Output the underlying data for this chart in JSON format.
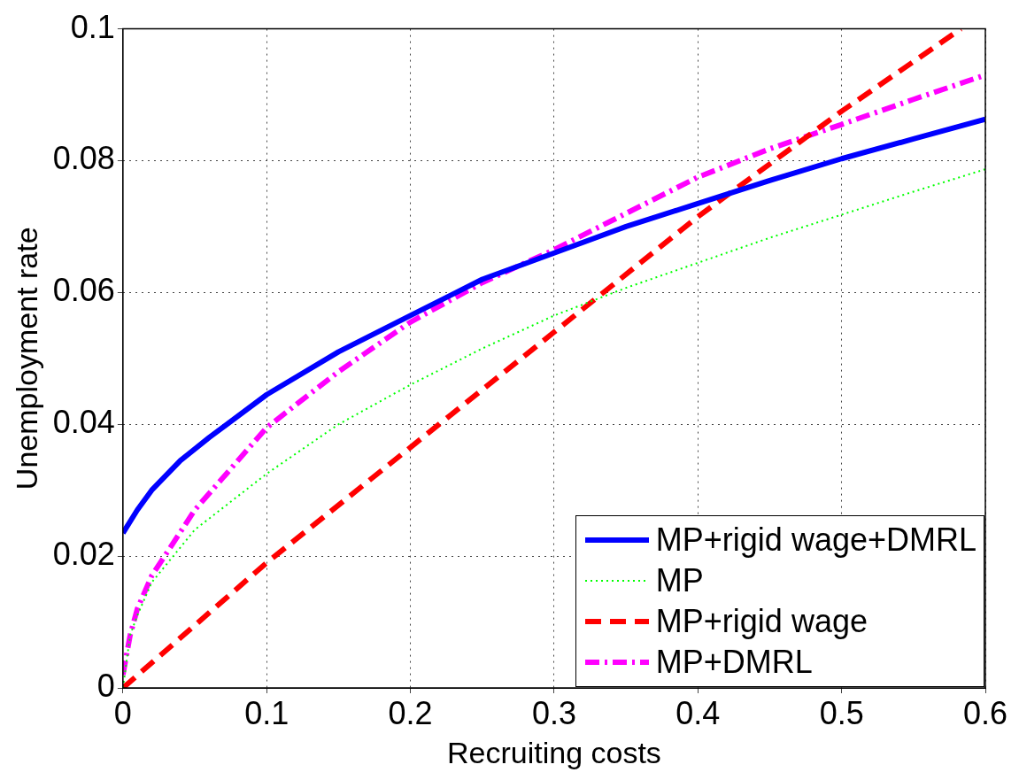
{
  "chart_data": {
    "type": "line",
    "xlabel": "Recruiting costs",
    "ylabel": "Unemployment rate",
    "xlim": [
      0,
      0.6
    ],
    "xticks": [
      0,
      0.1,
      0.2,
      0.3,
      0.4,
      0.5,
      0.6
    ],
    "ylim": [
      0,
      0.1
    ],
    "yticks": [
      0,
      0.02,
      0.04,
      0.06,
      0.08,
      0.1
    ],
    "grid": true,
    "legend": "bottom right",
    "marker": "none",
    "series": [
      {
        "name": "MP+rigid wage+DMRL",
        "color": "#0000ff",
        "line_style": "solid",
        "x": [
          0,
          0.01,
          0.02,
          0.04,
          0.06,
          0.1,
          0.15,
          0.2,
          0.25,
          0.3,
          0.35,
          0.4,
          0.45,
          0.5,
          0.55,
          0.6
        ],
        "values": [
          0.0235,
          0.027,
          0.03,
          0.0345,
          0.038,
          0.0445,
          0.051,
          0.0565,
          0.062,
          0.066,
          0.07,
          0.0735,
          0.077,
          0.0803,
          0.0833,
          0.0863
        ]
      },
      {
        "name": "MP",
        "color": "#00ff00",
        "line_style": "dotted",
        "x": [
          0,
          0.005,
          0.01,
          0.02,
          0.05,
          0.1,
          0.15,
          0.2,
          0.25,
          0.3,
          0.35,
          0.4,
          0.45,
          0.5,
          0.55,
          0.6
        ],
        "values": [
          0,
          0.008,
          0.011,
          0.016,
          0.024,
          0.0325,
          0.04,
          0.046,
          0.0515,
          0.0565,
          0.0607,
          0.0645,
          0.0683,
          0.0718,
          0.0753,
          0.0787
        ]
      },
      {
        "name": "MP+rigid wage",
        "color": "#ff0000",
        "line_style": "dashed",
        "x": [
          0,
          0.1,
          0.2,
          0.3,
          0.4,
          0.5,
          0.583
        ],
        "values": [
          0,
          0.019,
          0.0365,
          0.054,
          0.0715,
          0.0875,
          0.1
        ]
      },
      {
        "name": "MP+DMRL",
        "color": "#ff00ff",
        "line_style": "dashdot",
        "x": [
          0,
          0.005,
          0.01,
          0.02,
          0.05,
          0.1,
          0.15,
          0.2,
          0.25,
          0.3,
          0.35,
          0.4,
          0.45,
          0.5,
          0.55,
          0.6
        ],
        "values": [
          0.002,
          0.008,
          0.012,
          0.017,
          0.027,
          0.0395,
          0.048,
          0.0555,
          0.0615,
          0.0665,
          0.072,
          0.0775,
          0.0818,
          0.0855,
          0.0893,
          0.093
        ]
      }
    ]
  }
}
